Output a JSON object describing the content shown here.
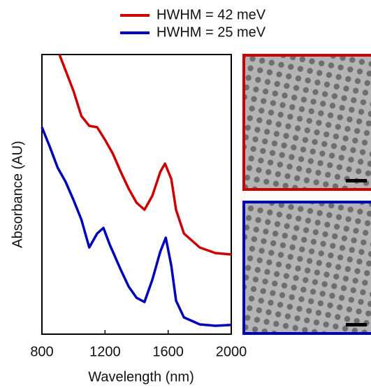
{
  "chart_data": {
    "type": "line",
    "xlabel": "Wavelength (nm)",
    "ylabel": "Absorbance (AU)",
    "xlim": [
      800,
      2000
    ],
    "xticks": [
      800,
      1200,
      1600,
      2000
    ],
    "ylim": [
      0,
      1
    ],
    "series": [
      {
        "name": "HWHM = 42 meV",
        "color": "#cc0000",
        "x": [
          911,
          1000,
          1050,
          1100,
          1150,
          1200,
          1250,
          1300,
          1350,
          1400,
          1450,
          1500,
          1550,
          1580,
          1620,
          1650,
          1700,
          1800,
          1900,
          2000
        ],
        "values": [
          1.0,
          0.87,
          0.78,
          0.745,
          0.74,
          0.695,
          0.645,
          0.58,
          0.52,
          0.47,
          0.445,
          0.495,
          0.58,
          0.61,
          0.555,
          0.445,
          0.36,
          0.31,
          0.29,
          0.285
        ]
      },
      {
        "name": "HWHM = 25 meV",
        "color": "#0000bb",
        "x": [
          800,
          850,
          900,
          950,
          1000,
          1050,
          1100,
          1150,
          1190,
          1230,
          1300,
          1350,
          1400,
          1450,
          1500,
          1550,
          1585,
          1620,
          1650,
          1700,
          1800,
          1900,
          2000
        ],
        "values": [
          0.74,
          0.67,
          0.595,
          0.545,
          0.48,
          0.41,
          0.31,
          0.36,
          0.38,
          0.32,
          0.23,
          0.17,
          0.13,
          0.115,
          0.195,
          0.295,
          0.345,
          0.245,
          0.12,
          0.06,
          0.035,
          0.03,
          0.033
        ]
      }
    ]
  }
}
